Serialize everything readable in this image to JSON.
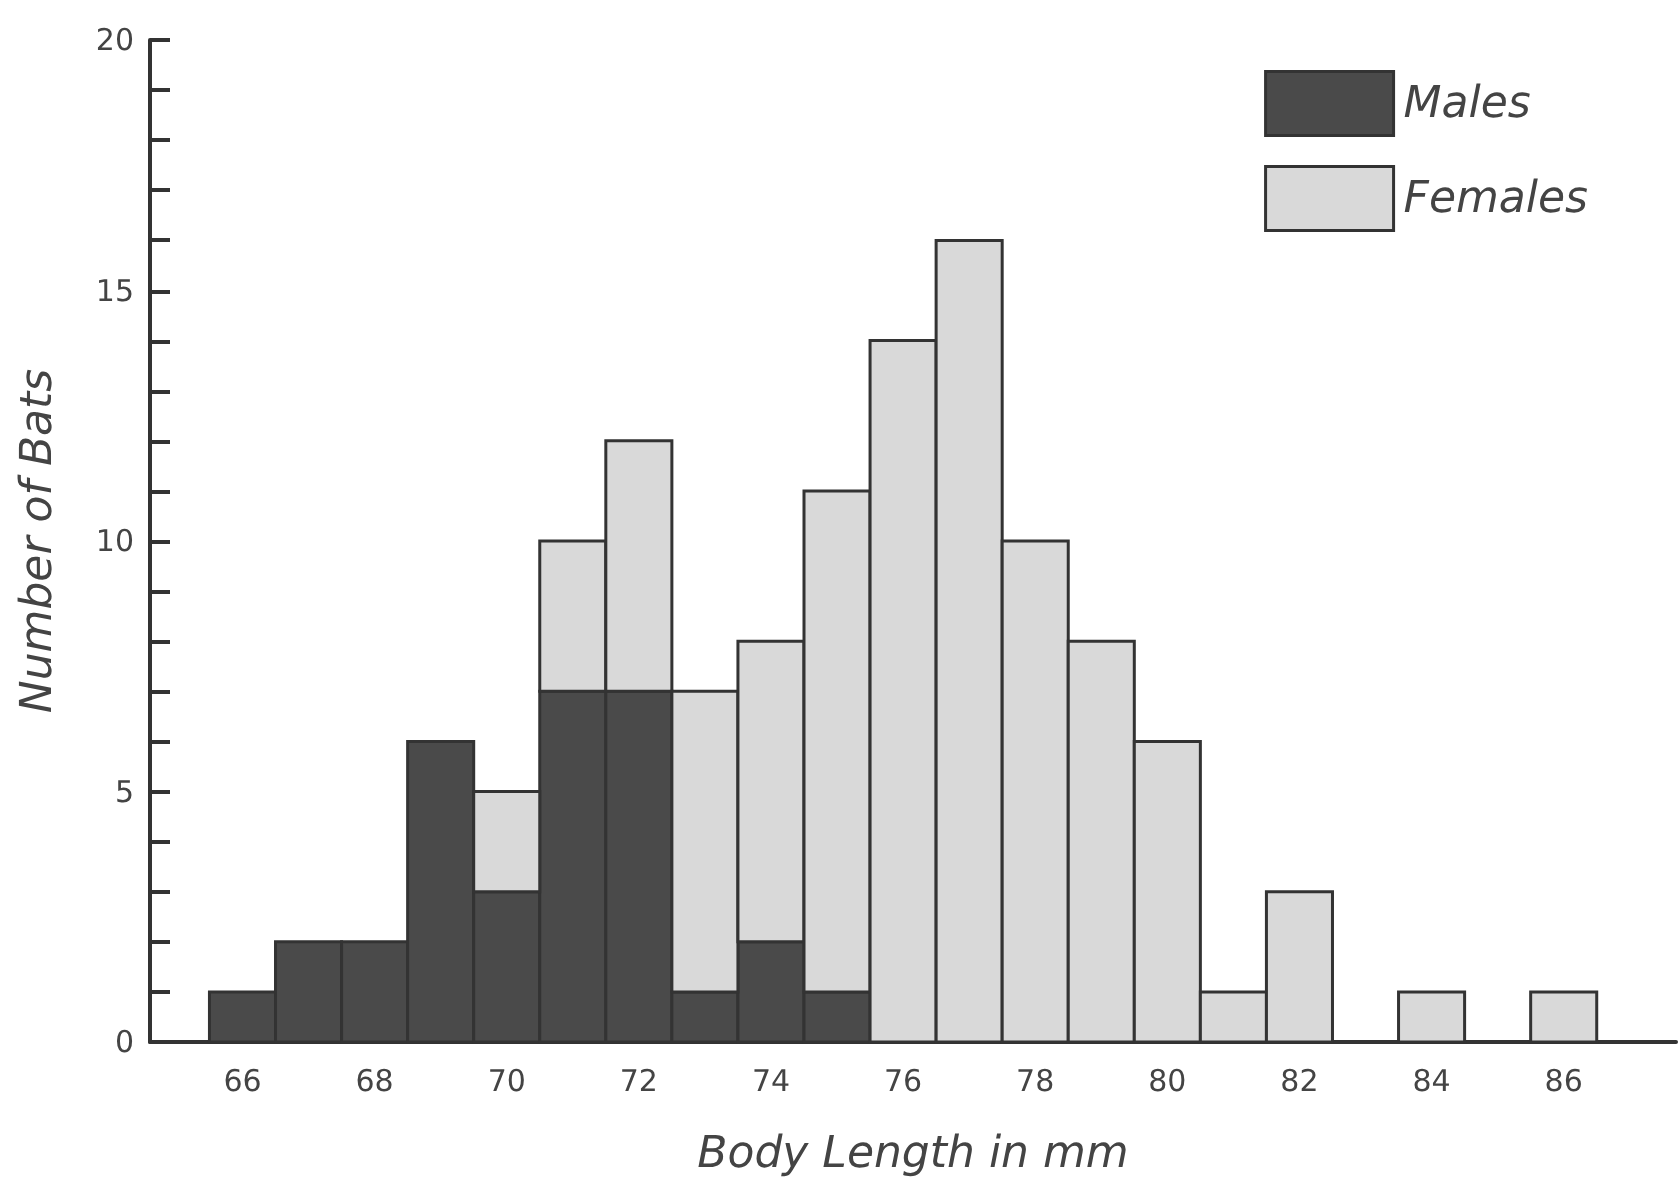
{
  "chart_data": {
    "type": "bar",
    "xlabel": "Body Length in mm",
    "ylabel": "Number of Bats",
    "x": [
      66,
      67,
      68,
      69,
      70,
      71,
      72,
      73,
      74,
      75,
      76,
      77,
      78,
      79,
      80,
      81,
      82,
      83,
      84,
      85,
      86
    ],
    "stacked": true,
    "series": [
      {
        "name": "Males",
        "color": "#4a4a4a",
        "values": [
          1,
          2,
          2,
          6,
          3,
          7,
          7,
          1,
          2,
          1,
          0,
          0,
          0,
          0,
          0,
          0,
          0,
          0,
          0,
          0,
          0
        ]
      },
      {
        "name": "Females",
        "color": "#d9d9d9",
        "values": [
          0,
          0,
          0,
          0,
          2,
          3,
          5,
          6,
          6,
          10,
          14,
          16,
          10,
          8,
          6,
          1,
          3,
          0,
          1,
          0,
          1
        ]
      }
    ],
    "xlim": [
      64.6,
      87.7
    ],
    "xticks": [
      66,
      68,
      70,
      72,
      74,
      76,
      78,
      80,
      82,
      84,
      86
    ],
    "ylim": [
      0,
      20
    ],
    "yticks": [
      0,
      {
        "value": 1,
        "label": null
      },
      {
        "value": 2,
        "label": null
      },
      {
        "value": 3,
        "label": null
      },
      {
        "value": 4,
        "label": null
      },
      5,
      {
        "value": 6,
        "label": null
      },
      {
        "value": 7,
        "label": null
      },
      {
        "value": 8,
        "label": null
      },
      {
        "value": 9,
        "label": null
      },
      10,
      {
        "value": 11,
        "label": null
      },
      {
        "value": 12,
        "label": null
      },
      {
        "value": 13,
        "label": null
      },
      {
        "value": 14,
        "label": null
      },
      15,
      {
        "value": 16,
        "label": null
      },
      {
        "value": 17,
        "label": null
      },
      {
        "value": 18,
        "label": null
      },
      {
        "value": 19,
        "label": null
      },
      20
    ],
    "grid": false,
    "legend": "top right"
  }
}
